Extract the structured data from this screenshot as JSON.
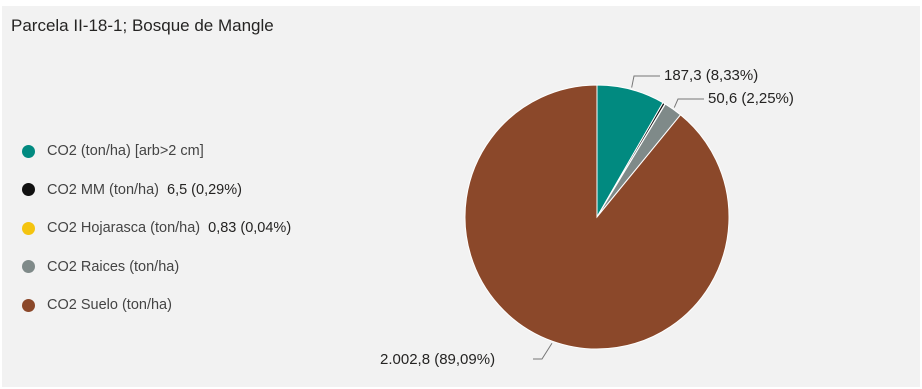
{
  "chart_data": {
    "type": "pie",
    "title": "Parcela II-18-1; Bosque de Mangle",
    "slices": [
      {
        "name": "CO2 (ton/ha) [arb>2 cm]",
        "value": 187.3,
        "percent": 8.33,
        "label": "187,3 (8,33%)",
        "legend_value": "",
        "color": "#018a80"
      },
      {
        "name": "CO2 MM (ton/ha)",
        "value": 6.5,
        "percent": 0.29,
        "label": "",
        "legend_value": "6,5 (0,29%)",
        "color": "#111111"
      },
      {
        "name": "CO2 Hojarasca (ton/ha)",
        "value": 0.83,
        "percent": 0.04,
        "label": "",
        "legend_value": "0,83 (0,04%)",
        "color": "#f4c40f"
      },
      {
        "name": "CO2 Raices (ton/ha)",
        "value": 50.6,
        "percent": 2.25,
        "label": "50,6 (2,25%)",
        "legend_value": "",
        "color": "#7f8a89"
      },
      {
        "name": "CO2 Suelo (ton/ha)",
        "value": 2002.8,
        "percent": 89.09,
        "label": "2.002,8 (89,09%)",
        "legend_value": "",
        "color": "#8b482a"
      }
    ],
    "legend_position": "left"
  }
}
